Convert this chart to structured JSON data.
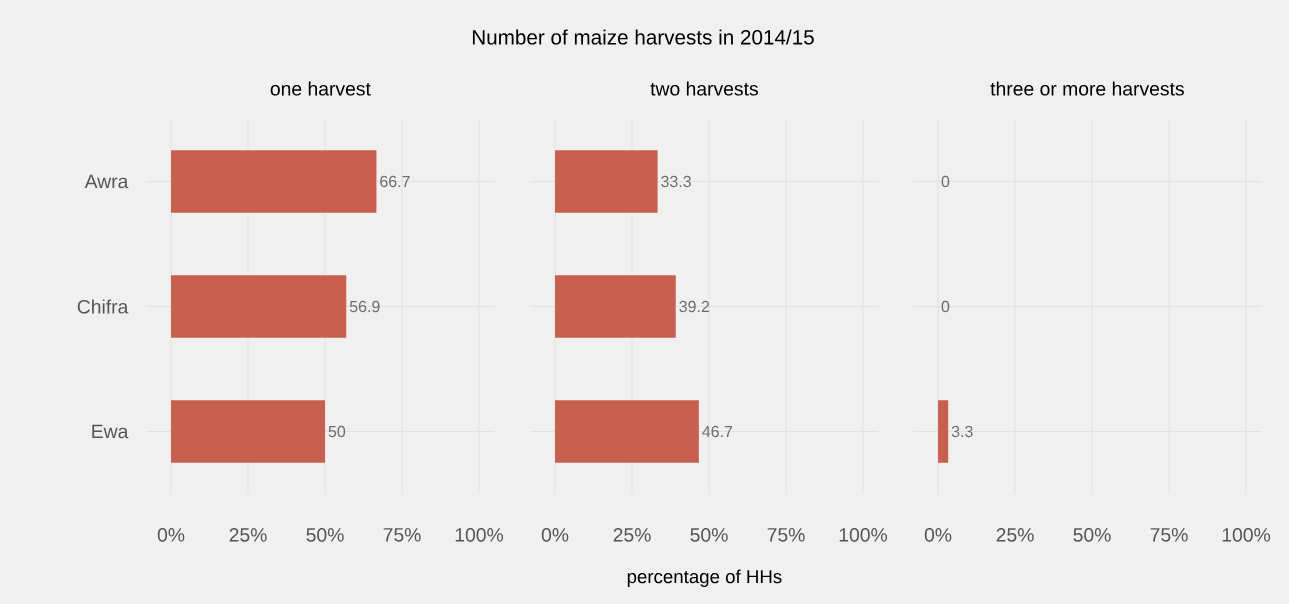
{
  "chart_data": [
    {
      "type": "bar",
      "orientation": "horizontal",
      "subtitle": "one harvest",
      "categories": [
        "Awra",
        "Chifra",
        "Ewa"
      ],
      "values": [
        66.7,
        56.9,
        50
      ],
      "color": "#c8604f",
      "data_labels": true,
      "grid": true,
      "xlim": [
        -8,
        105
      ],
      "xticks": [
        {
          "value": 0,
          "label": "0%"
        },
        {
          "value": 25,
          "label": "25%"
        },
        {
          "value": 50,
          "label": "50%"
        },
        {
          "value": 75,
          "label": "75%"
        },
        {
          "value": 100,
          "label": "100%"
        }
      ]
    },
    {
      "type": "bar",
      "orientation": "horizontal",
      "title": "Number of maize harvests in 2014/15",
      "subtitle": "two harvests",
      "xlabel": "percentage of HHs",
      "categories": [
        null,
        null,
        null
      ],
      "values": [
        33.3,
        39.2,
        46.7
      ],
      "color": "#c8604f",
      "data_labels": true,
      "grid": true,
      "tick_labels": "x",
      "xlim": [
        -8,
        105
      ],
      "xticks": [
        {
          "value": 0,
          "label": "0%"
        },
        {
          "value": 25,
          "label": "25%"
        },
        {
          "value": 50,
          "label": "50%"
        },
        {
          "value": 75,
          "label": "75%"
        },
        {
          "value": 100,
          "label": "100%"
        }
      ]
    },
    {
      "type": "bar",
      "orientation": "horizontal",
      "subtitle": "three or more harvests",
      "categories": [
        null,
        null,
        null
      ],
      "values": [
        0,
        0,
        3.3
      ],
      "color": "#c8604f",
      "data_labels": true,
      "grid": true,
      "tick_labels": "x",
      "xlim": [
        -8,
        105
      ],
      "xticks": [
        {
          "value": 0,
          "label": "0%"
        },
        {
          "value": 25,
          "label": "25%"
        },
        {
          "value": 50,
          "label": "50%"
        },
        {
          "value": 75,
          "label": "75%"
        },
        {
          "value": 100,
          "label": "100%"
        }
      ]
    }
  ]
}
